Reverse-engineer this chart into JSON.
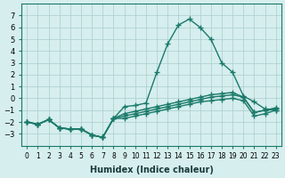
{
  "xlabel": "Humidex (Indice chaleur)",
  "ylabel": "",
  "background_color": "#d6eeee",
  "grid_color": "#aacccc",
  "line_color": "#1a7a6a",
  "x_values": [
    0,
    1,
    2,
    3,
    4,
    5,
    6,
    7,
    8,
    9,
    10,
    11,
    12,
    13,
    14,
    15,
    16,
    17,
    18,
    19,
    20,
    21,
    22,
    23
  ],
  "series1": [
    -2.0,
    -2.2,
    -1.8,
    -2.5,
    -2.6,
    -2.6,
    -3.1,
    -3.3,
    -1.7,
    -0.7,
    -0.6,
    -0.4,
    2.2,
    4.6,
    6.2,
    6.7,
    6.0,
    5.0,
    3.0,
    2.2,
    0.2,
    -0.3,
    -0.9,
    -1.0
  ],
  "series2": [
    -2.0,
    -2.2,
    -1.8,
    -2.5,
    -2.6,
    -2.6,
    -3.1,
    -3.3,
    -1.7,
    -1.7,
    -1.5,
    -1.3,
    -1.1,
    -0.9,
    -0.7,
    -0.5,
    -0.3,
    -0.2,
    -0.1,
    0.0,
    -0.2,
    -1.5,
    -1.3,
    -1.0
  ],
  "series3": [
    -2.0,
    -2.2,
    -1.8,
    -2.5,
    -2.6,
    -2.6,
    -3.1,
    -3.3,
    -1.7,
    -1.5,
    -1.3,
    -1.1,
    -0.9,
    -0.7,
    -0.5,
    -0.3,
    -0.1,
    0.1,
    0.2,
    0.3,
    0.1,
    -1.2,
    -1.0,
    -0.9
  ],
  "series4": [
    -2.0,
    -2.2,
    -1.8,
    -2.5,
    -2.6,
    -2.6,
    -3.1,
    -3.3,
    -1.7,
    -1.3,
    -1.1,
    -0.9,
    -0.7,
    -0.5,
    -0.3,
    -0.1,
    0.1,
    0.3,
    0.4,
    0.5,
    0.1,
    -1.2,
    -1.0,
    -0.8
  ],
  "ylim": [
    -4,
    8
  ],
  "yticks": [
    -3,
    -2,
    -1,
    0,
    1,
    2,
    3,
    4,
    5,
    6,
    7
  ],
  "xlim": [
    -0.5,
    23.5
  ]
}
